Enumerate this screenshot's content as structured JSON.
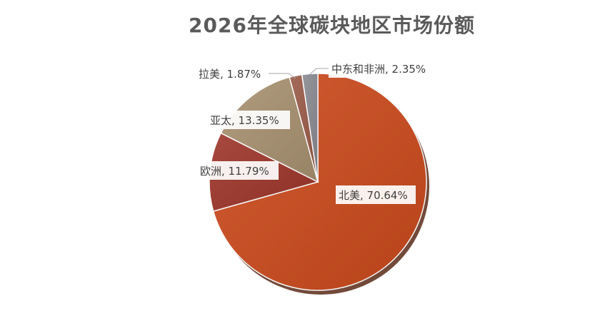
{
  "chart_data": {
    "type": "pie",
    "title": "2026年全球碳块地区市场份额",
    "slices": [
      {
        "name": "北美",
        "value": 70.64,
        "label": "北美, 70.64%",
        "color": "#CC4A1C"
      },
      {
        "name": "欧洲",
        "value": 11.79,
        "label": "欧洲, 11.79%",
        "color": "#9E352A"
      },
      {
        "name": "亚太",
        "value": 13.35,
        "label": "亚太, 13.35%",
        "color": "#A89170"
      },
      {
        "name": "拉美",
        "value": 1.87,
        "label": "拉美, 1.87%",
        "color": "#9A5A48"
      },
      {
        "name": "中东和非洲",
        "value": 2.35,
        "label": "中东和非洲, 2.35%",
        "color": "#8A8A92"
      }
    ],
    "start": "12 o'clock",
    "direction": "clockwise",
    "legend": "none"
  }
}
